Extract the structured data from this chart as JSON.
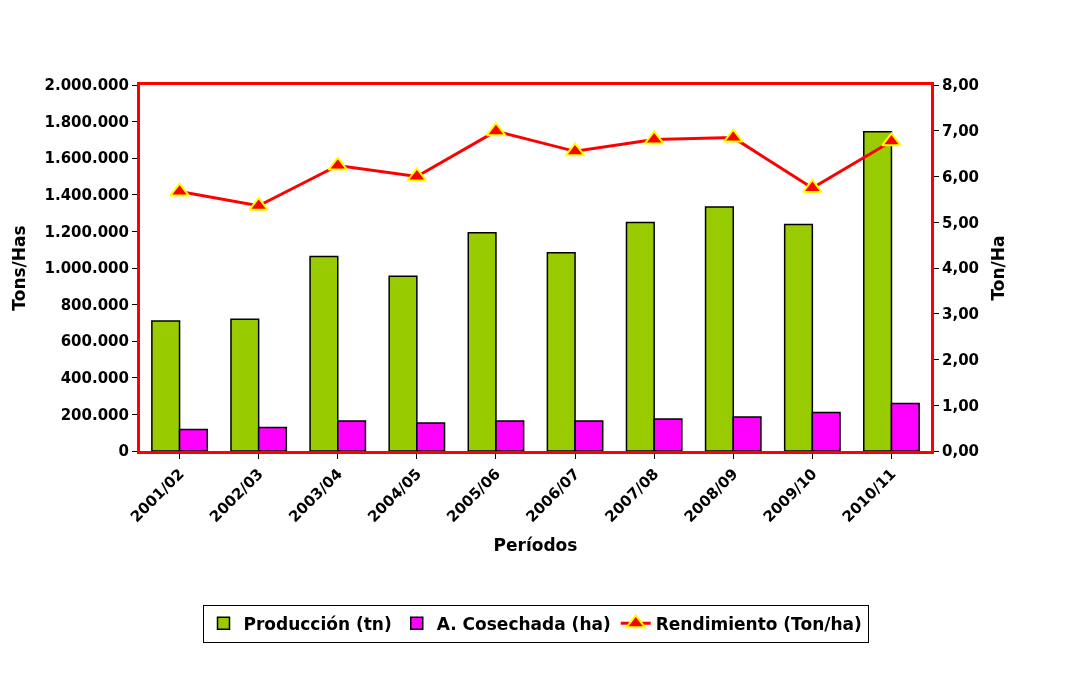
{
  "chart_data": {
    "type": "bar",
    "xlabel": "Períodos",
    "ylabel": "Tons/Has",
    "y2label": "Ton/Ha",
    "categories": [
      "2001/02",
      "2002/03",
      "2003/04",
      "2004/05",
      "2005/06",
      "2006/07",
      "2007/08",
      "2008/09",
      "2009/10",
      "2010/11"
    ],
    "series": [
      {
        "name": "Producción (tn)",
        "color": "#99cc00",
        "values": [
          711000,
          720000,
          1063000,
          955000,
          1192000,
          1084000,
          1249000,
          1333000,
          1238000,
          1745000
        ]
      },
      {
        "name": "A. Cosechada (ha)",
        "color": "#ff00ff",
        "values": [
          117000,
          128000,
          164000,
          153000,
          164000,
          164000,
          175000,
          186000,
          211000,
          259000
        ]
      },
      {
        "name": "Rendimiento (Ton/ha)",
        "type": "line",
        "axis": "y2",
        "color": "#ff0000",
        "marker": "triangle",
        "line_style": "solid",
        "values": [
          5.67,
          5.36,
          6.24,
          6.0,
          6.99,
          6.55,
          6.81,
          6.85,
          5.75,
          6.77
        ]
      }
    ],
    "ylim": [
      0,
      2000000
    ],
    "yticks": [
      {
        "value": 0,
        "label": "0"
      },
      {
        "value": 200000,
        "label": "200.000"
      },
      {
        "value": 400000,
        "label": "400.000"
      },
      {
        "value": 600000,
        "label": "600.000"
      },
      {
        "value": 800000,
        "label": "800.000"
      },
      {
        "value": 1000000,
        "label": "1.000.000"
      },
      {
        "value": 1200000,
        "label": "1.200.000"
      },
      {
        "value": 1400000,
        "label": "1.400.000"
      },
      {
        "value": 1600000,
        "label": "1.600.000"
      },
      {
        "value": 1800000,
        "label": "1.800.000"
      },
      {
        "value": 2000000,
        "label": "2.000.000"
      }
    ],
    "y2lim": [
      0,
      8
    ],
    "y2ticks": [
      {
        "value": 0,
        "label": "0,00"
      },
      {
        "value": 1,
        "label": "1,00"
      },
      {
        "value": 2,
        "label": "2,00"
      },
      {
        "value": 3,
        "label": "3,00"
      },
      {
        "value": 4,
        "label": "4,00"
      },
      {
        "value": 5,
        "label": "5,00"
      },
      {
        "value": 6,
        "label": "6,00"
      },
      {
        "value": 7,
        "label": "7,00"
      },
      {
        "value": 8,
        "label": "8,00"
      }
    ],
    "legend": "bottom"
  }
}
